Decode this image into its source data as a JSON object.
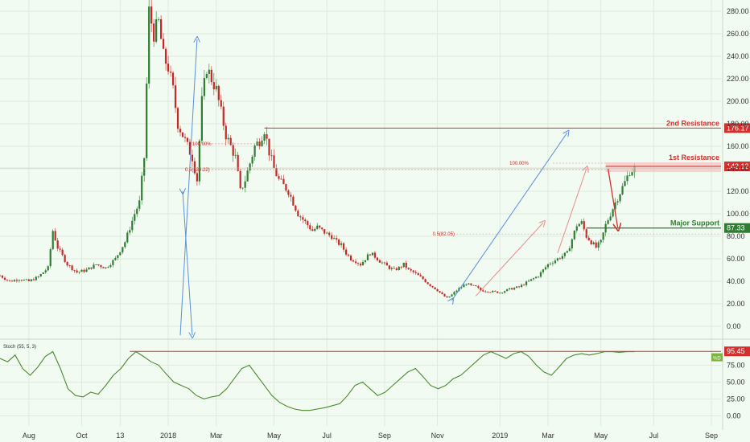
{
  "chart_data": [
    {
      "type": "candlestick",
      "ylim": [
        -10,
        290
      ],
      "yticks": [
        "0.00",
        "20.00",
        "40.00",
        "60.00",
        "80.00",
        "100.00",
        "120.00",
        "140.00",
        "160.00",
        "180.00",
        "200.00",
        "220.00",
        "240.00",
        "260.00",
        "280.00"
      ],
      "ytick_values": [
        0,
        20,
        40,
        60,
        80,
        100,
        120,
        140,
        160,
        180,
        200,
        220,
        240,
        260,
        280
      ],
      "xticks": [
        "Aug",
        "Oct",
        "13",
        "2018",
        "Mar",
        "May",
        "Jul",
        "Sep",
        "Nov",
        "2019",
        "Mar",
        "May",
        "Jul",
        "Sep"
      ],
      "x_index_range": [
        0,
        100
      ],
      "xtick_index": [
        6,
        17,
        25,
        35,
        45,
        57,
        68,
        80,
        91,
        104,
        114,
        125,
        136,
        148
      ],
      "price_path": [
        [
          0,
          45
        ],
        [
          2,
          40
        ],
        [
          4,
          42
        ],
        [
          6,
          40
        ],
        [
          8,
          44
        ],
        [
          10,
          52
        ],
        [
          11,
          85
        ],
        [
          12,
          70
        ],
        [
          14,
          55
        ],
        [
          16,
          48
        ],
        [
          18,
          50
        ],
        [
          20,
          55
        ],
        [
          22,
          52
        ],
        [
          24,
          60
        ],
        [
          26,
          75
        ],
        [
          28,
          100
        ],
        [
          29,
          110
        ],
        [
          30,
          150
        ],
        [
          31,
          280
        ],
        [
          32,
          260
        ],
        [
          33,
          270
        ],
        [
          34,
          240
        ],
        [
          35,
          230
        ],
        [
          36,
          210
        ],
        [
          37,
          180
        ],
        [
          38,
          170
        ],
        [
          39,
          160
        ],
        [
          40,
          150
        ],
        [
          41,
          130
        ],
        [
          42,
          200
        ],
        [
          43,
          230
        ],
        [
          44,
          220
        ],
        [
          45,
          210
        ],
        [
          46,
          190
        ],
        [
          47,
          170
        ],
        [
          48,
          160
        ],
        [
          49,
          150
        ],
        [
          50,
          120
        ],
        [
          51,
          130
        ],
        [
          52,
          145
        ],
        [
          53,
          160
        ],
        [
          54,
          165
        ],
        [
          55,
          175
        ],
        [
          56,
          155
        ],
        [
          57,
          140
        ],
        [
          58,
          130
        ],
        [
          59,
          125
        ],
        [
          60,
          120
        ],
        [
          61,
          110
        ],
        [
          62,
          100
        ],
        [
          63,
          95
        ],
        [
          64,
          90
        ],
        [
          65,
          85
        ],
        [
          66,
          88
        ],
        [
          67,
          85
        ],
        [
          68,
          82
        ],
        [
          69,
          80
        ],
        [
          70,
          75
        ],
        [
          71,
          72
        ],
        [
          72,
          65
        ],
        [
          73,
          60
        ],
        [
          74,
          58
        ],
        [
          75,
          55
        ],
        [
          76,
          60
        ],
        [
          77,
          65
        ],
        [
          78,
          62
        ],
        [
          79,
          58
        ],
        [
          80,
          55
        ],
        [
          81,
          52
        ],
        [
          82,
          50
        ],
        [
          83,
          52
        ],
        [
          84,
          55
        ],
        [
          85,
          50
        ],
        [
          86,
          48
        ],
        [
          87,
          45
        ],
        [
          88,
          42
        ],
        [
          89,
          38
        ],
        [
          90,
          35
        ],
        [
          91,
          32
        ],
        [
          92,
          28
        ],
        [
          93,
          25
        ],
        [
          94,
          28
        ],
        [
          95,
          32
        ],
        [
          96,
          35
        ],
        [
          97,
          38
        ],
        [
          98,
          36
        ],
        [
          99,
          35
        ],
        [
          100,
          32
        ]
      ],
      "annotations": {
        "resistance2_label": "2nd Resistance",
        "resistance2_value": "176.17",
        "resistance1_label": "1st Resistance",
        "resistance1_value": "142.12",
        "support_label": "Major Support",
        "support_value": "87.33",
        "fib_left_100": "100.00%",
        "fib_left_05": "0.5(139.22)",
        "fib_right_100": "100.00%",
        "fib_right_05": "0.5(82.05)"
      },
      "levels": {
        "resistance2": 176.17,
        "resistance1": 142.12,
        "support": 87.33
      },
      "colors": {
        "up": "#2e7d32",
        "down": "#c62828",
        "resistance": "#d32f2f",
        "support": "#2e7d32",
        "trend": "#5b8fd6",
        "bg": "#f2fbf1"
      }
    },
    {
      "type": "line",
      "title": "Stoch (55, 5, 3)",
      "ylim": [
        -15,
        110
      ],
      "yticks": [
        "0.00",
        "25.00",
        "50.00",
        "75.00"
      ],
      "ytick_values": [
        0,
        25,
        50,
        75
      ],
      "level_value": "95.45",
      "level": 95.45,
      "last_value_badge": "%D",
      "values": [
        85,
        80,
        90,
        70,
        60,
        72,
        88,
        95,
        70,
        40,
        30,
        28,
        35,
        32,
        45,
        60,
        70,
        85,
        95,
        88,
        80,
        75,
        62,
        50,
        45,
        40,
        30,
        25,
        28,
        30,
        40,
        55,
        70,
        75,
        60,
        45,
        30,
        20,
        14,
        10,
        8,
        8,
        10,
        12,
        15,
        18,
        30,
        45,
        50,
        40,
        30,
        35,
        45,
        55,
        65,
        70,
        58,
        45,
        40,
        45,
        55,
        60,
        70,
        80,
        90,
        95,
        90,
        85,
        92,
        95,
        88,
        75,
        65,
        60,
        72,
        85,
        90,
        92,
        90,
        92,
        95,
        95,
        94,
        95,
        95
      ],
      "color": "#4a8a2c",
      "level_color": "#d32f2f"
    }
  ]
}
